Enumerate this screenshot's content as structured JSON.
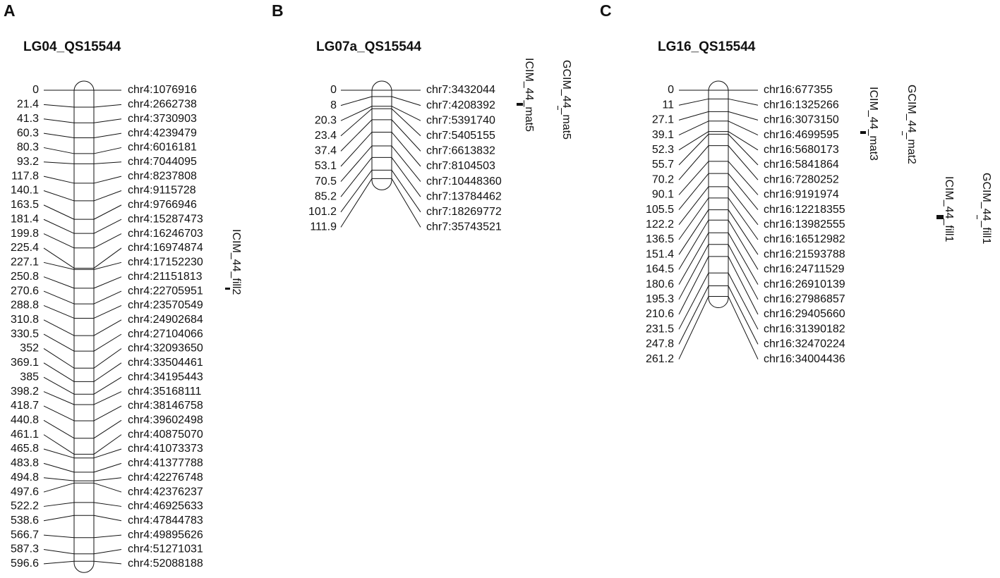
{
  "panels": [
    {
      "letter": "A",
      "title": "LG04_QS15544",
      "markers": [
        {
          "position": 0,
          "name": "chr4:1076916"
        },
        {
          "position": 21.4,
          "name": "chr4:2662738"
        },
        {
          "position": 41.3,
          "name": "chr4:3730903"
        },
        {
          "position": 60.3,
          "name": "chr4:4239479"
        },
        {
          "position": 80.3,
          "name": "chr4:6016181"
        },
        {
          "position": 93.2,
          "name": "chr4:7044095"
        },
        {
          "position": 117.8,
          "name": "chr4:8237808"
        },
        {
          "position": 140.1,
          "name": "chr4:9115728"
        },
        {
          "position": 163.5,
          "name": "chr4:9766946"
        },
        {
          "position": 181.4,
          "name": "chr4:15287473"
        },
        {
          "position": 199.8,
          "name": "chr4:16246703"
        },
        {
          "position": 225.4,
          "name": "chr4:16974874"
        },
        {
          "position": 227.1,
          "name": "chr4:17152230"
        },
        {
          "position": 250.8,
          "name": "chr4:21151813"
        },
        {
          "position": 270.6,
          "name": "chr4:22705951"
        },
        {
          "position": 288.8,
          "name": "chr4:23570549"
        },
        {
          "position": 310.8,
          "name": "chr4:24902684"
        },
        {
          "position": 330.5,
          "name": "chr4:27104066"
        },
        {
          "position": 352,
          "name": "chr4:32093650"
        },
        {
          "position": 369.1,
          "name": "chr4:33504461"
        },
        {
          "position": 385,
          "name": "chr4:34195443"
        },
        {
          "position": 398.2,
          "name": "chr4:35168111"
        },
        {
          "position": 418.7,
          "name": "chr4:38146758"
        },
        {
          "position": 440.8,
          "name": "chr4:39602498"
        },
        {
          "position": 461.1,
          "name": "chr4:40875070"
        },
        {
          "position": 465.8,
          "name": "chr4:41073373"
        },
        {
          "position": 483.8,
          "name": "chr4:41377788"
        },
        {
          "position": 494.8,
          "name": "chr4:42276748"
        },
        {
          "position": 497.6,
          "name": "chr4:42376237"
        },
        {
          "position": 522.2,
          "name": "chr4:46925633"
        },
        {
          "position": 538.6,
          "name": "chr4:47844783"
        },
        {
          "position": 566.7,
          "name": "chr4:49895626"
        },
        {
          "position": 587.3,
          "name": "chr4:51271031"
        },
        {
          "position": 596.6,
          "name": "chr4:52088188"
        }
      ],
      "qtls": [
        {
          "label": "ICIM_44_fill2"
        }
      ]
    },
    {
      "letter": "B",
      "title": "LG07a_QS15544",
      "markers": [
        {
          "position": 0,
          "name": "chr7:3432044"
        },
        {
          "position": 8,
          "name": "chr7:4208392"
        },
        {
          "position": 20.3,
          "name": "chr7:5391740"
        },
        {
          "position": 23.4,
          "name": "chr7:5405155"
        },
        {
          "position": 37.4,
          "name": "chr7:6613832"
        },
        {
          "position": 53.1,
          "name": "chr7:8104503"
        },
        {
          "position": 70.5,
          "name": "chr7:10448360"
        },
        {
          "position": 85.2,
          "name": "chr7:13784462"
        },
        {
          "position": 101.2,
          "name": "chr7:18269772"
        },
        {
          "position": 111.9,
          "name": "chr7:35743521"
        }
      ],
      "qtls": [
        {
          "label": "ICIM_44_mat5"
        },
        {
          "label": "GCIM_44_mat5"
        }
      ]
    },
    {
      "letter": "C",
      "title": "LG16_QS15544",
      "markers": [
        {
          "position": 0,
          "name": "chr16:677355"
        },
        {
          "position": 11,
          "name": "chr16:1325266"
        },
        {
          "position": 27.1,
          "name": "chr16:3073150"
        },
        {
          "position": 39.1,
          "name": "chr16:4699595"
        },
        {
          "position": 52.3,
          "name": "chr16:5680173"
        },
        {
          "position": 55.7,
          "name": "chr16:5841864"
        },
        {
          "position": 70.2,
          "name": "chr16:7280252"
        },
        {
          "position": 90.1,
          "name": "chr16:9191974"
        },
        {
          "position": 105.5,
          "name": "chr16:12218355"
        },
        {
          "position": 122.2,
          "name": "chr16:13982555"
        },
        {
          "position": 136.5,
          "name": "chr16:16512982"
        },
        {
          "position": 151.4,
          "name": "chr16:21593788"
        },
        {
          "position": 164.5,
          "name": "chr16:24711529"
        },
        {
          "position": 180.6,
          "name": "chr16:26910139"
        },
        {
          "position": 195.3,
          "name": "chr16:27986857"
        },
        {
          "position": 210.6,
          "name": "chr16:29405660"
        },
        {
          "position": 231.5,
          "name": "chr16:31390182"
        },
        {
          "position": 247.8,
          "name": "chr16:32470224"
        },
        {
          "position": 261.2,
          "name": "chr16:34004436"
        }
      ],
      "qtls": [
        {
          "label": "ICIM_44_mat3"
        },
        {
          "label": "GCIM_44_mat2"
        },
        {
          "label": "ICIM_44_fill1"
        },
        {
          "label": "GCIM_44_fill1"
        }
      ]
    }
  ]
}
